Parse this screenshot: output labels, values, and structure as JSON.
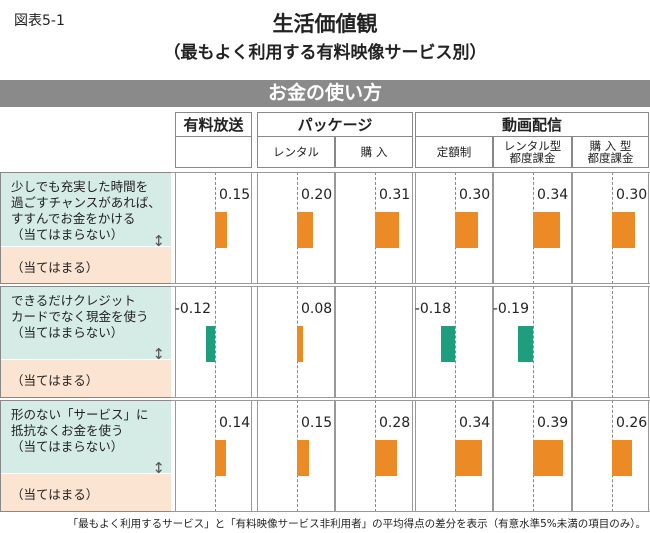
{
  "figure_label": "図表5-1",
  "title": "生活価値観",
  "subtitle": "（最もよく利用する有料映像サービス別）",
  "banner": "お金の使い方",
  "groups": [
    "有料放送",
    "パッケージ",
    "動画配信"
  ],
  "columns": [
    "",
    "レンタル",
    "購 入",
    "定額制",
    "レンタル型\n都度課金",
    "購 入 型\n都度課金"
  ],
  "colors": {
    "positive": "#ec8a26",
    "negative": "#1f9e7e"
  },
  "chart_data": {
    "type": "bar",
    "orientation": "horizontal",
    "categories": [
      "有料放送",
      "パッケージ レンタル",
      "パッケージ 購入",
      "動画配信 定額制",
      "動画配信 レンタル型都度課金",
      "動画配信 購入型都度課金"
    ],
    "rows": [
      {
        "label": "少しでも充実した時間を\n過ごすチャンスがあれば、\nすすんでお金をかける\n（当てはまらない）",
        "bottom": "（当てはまる）",
        "values": [
          0.15,
          0.2,
          0.31,
          0.3,
          0.34,
          0.3
        ],
        "labels": [
          "0.15",
          "0.20",
          "0.31",
          "0.30",
          "0.34",
          "0.30"
        ]
      },
      {
        "label": "できるだけクレジット\nカードでなく現金を使う\n（当てはまらない）",
        "bottom": "（当てはまる）",
        "values": [
          -0.12,
          0.08,
          null,
          -0.18,
          -0.19,
          null
        ],
        "labels": [
          "-0.12",
          "0.08",
          "",
          "-0.18",
          "-0.19",
          ""
        ]
      },
      {
        "label": "形のない「サービス」に\n抵抗なくお金を使う\n（当てはまらない）",
        "bottom": "（当てはまる）",
        "values": [
          0.14,
          0.15,
          0.28,
          0.34,
          0.39,
          0.26
        ],
        "labels": [
          "0.14",
          "0.15",
          "0.28",
          "0.34",
          "0.39",
          "0.26"
        ]
      }
    ]
  },
  "note": "「最もよく利用するサービス」と「有料映像サービス非利用者」の平均得点の差分を表示（有意水準5%未満の項目のみ）。"
}
